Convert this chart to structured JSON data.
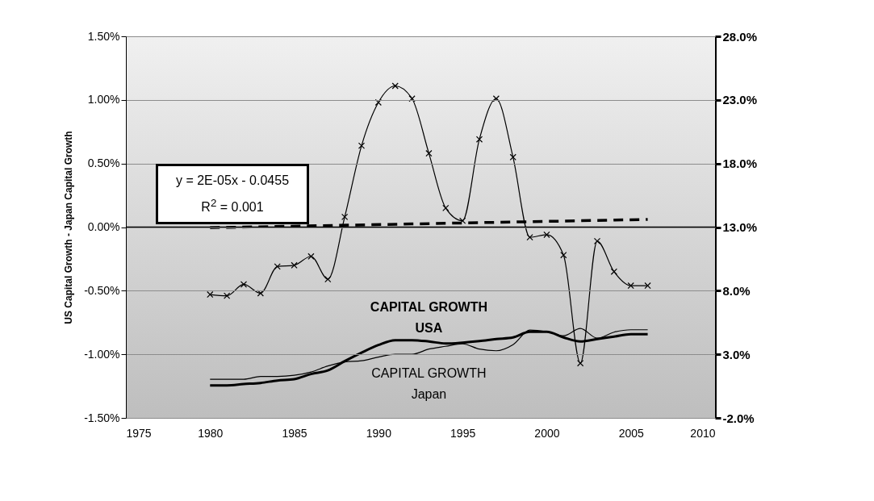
{
  "chart_data": {
    "type": "line",
    "ylabel": "US Capital Growth - Japan Capital Growth",
    "xlim": [
      1975,
      2010
    ],
    "xticks": [
      1975,
      1980,
      1985,
      1990,
      1995,
      2000,
      2005,
      2010
    ],
    "ylim": [
      -1.5,
      1.5
    ],
    "yticks": [
      {
        "value": -1.5,
        "label": "-1.50%"
      },
      {
        "value": -1,
        "label": "-1.00%"
      },
      {
        "value": -0.5,
        "label": "-0.50%"
      },
      {
        "value": 0,
        "label": "0.00%"
      },
      {
        "value": 0.5,
        "label": "0.50%"
      },
      {
        "value": 1,
        "label": "1.00%"
      },
      {
        "value": 1.5,
        "label": "1.50%"
      }
    ],
    "y2lim": [
      -2,
      28
    ],
    "y2ticks": [
      {
        "value": -2,
        "label": "-2.0%"
      },
      {
        "value": 3,
        "label": "3.0%"
      },
      {
        "value": 8,
        "label": "8.0%"
      },
      {
        "value": 13,
        "label": "13.0%"
      },
      {
        "value": 18,
        "label": "18.0%"
      },
      {
        "value": 23,
        "label": "23.0%"
      },
      {
        "value": 28,
        "label": "28.0%"
      }
    ],
    "x": [
      1980,
      1981,
      1982,
      1983,
      1984,
      1985,
      1986,
      1987,
      1988,
      1989,
      1990,
      1991,
      1992,
      1993,
      1994,
      1995,
      1996,
      1997,
      1998,
      1999,
      2000,
      2001,
      2002,
      2003,
      2004,
      2005,
      2006
    ],
    "series": [
      {
        "color": "#000000",
        "marker": "cross",
        "values": [
          -0.53,
          -0.54,
          -0.45,
          -0.52,
          -0.31,
          -0.3,
          -0.23,
          -0.41,
          0.08,
          0.64,
          0.98,
          1.11,
          1.01,
          0.58,
          0.15,
          0.05,
          0.69,
          1.01,
          0.55,
          -0.08,
          -0.06,
          -0.22,
          -1.07,
          -0.11,
          -0.35,
          -0.46,
          -0.46
        ]
      },
      {
        "color": "#000000",
        "line_style": "dashed",
        "x": [
          1980,
          2006
        ],
        "values": [
          -0.005,
          0.06
        ]
      },
      {
        "name": "CAPITAL GROWTH USA",
        "color": "#000000",
        "axis": "y2",
        "values": [
          0.56,
          0.56,
          0.66,
          0.75,
          0.94,
          1.04,
          1.45,
          1.73,
          2.46,
          3.13,
          3.73,
          4.11,
          4.11,
          4.01,
          3.85,
          3.92,
          4.04,
          4.2,
          4.33,
          4.77,
          4.77,
          4.33,
          4.01,
          4.2,
          4.39,
          4.58,
          4.58
        ]
      },
      {
        "name": "CAPITAL GROWTH Japan",
        "color": "#000000",
        "axis": "y2",
        "values": [
          1.04,
          1.04,
          1.04,
          1.26,
          1.26,
          1.35,
          1.61,
          2.08,
          2.4,
          2.49,
          2.78,
          3.0,
          3.0,
          3.41,
          3.63,
          3.82,
          3.41,
          3.28,
          3.76,
          4.9,
          4.77,
          4.46,
          5.03,
          4.27,
          4.74,
          4.93,
          4.93
        ]
      }
    ],
    "ref_lines": [
      {
        "axis": "y",
        "value": 0,
        "color": "#000000"
      }
    ],
    "annotations": [
      "y = 2E-05x - 0.0455",
      "R$^{2}$ = 0.001"
    ],
    "grid": "y"
  }
}
